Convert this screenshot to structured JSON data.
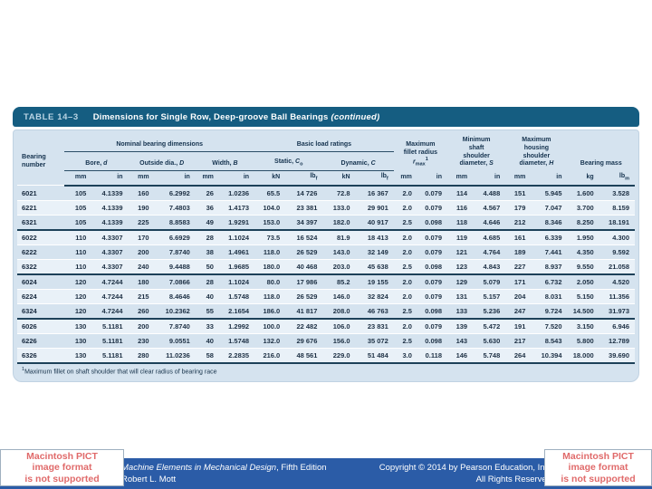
{
  "table": {
    "title_label": "TABLE 14–3",
    "title_text": "Dimensions for Single Row, Deep-groove Ball Bearings",
    "title_suffix": "(continued)",
    "headers": {
      "bearing": "Bearing number",
      "nominal_group": "Nominal bearing dimensions",
      "load_group": "Basic load ratings",
      "bore": {
        "text": "Bore, ",
        "sym": "d"
      },
      "outside": {
        "text": "Outside dia., ",
        "sym": "D"
      },
      "width": {
        "text": "Width, ",
        "sym": "B"
      },
      "static": {
        "text": "Static, ",
        "sym": "C",
        "sub": "o"
      },
      "dynamic": {
        "text": "Dynamic, ",
        "sym": "C"
      },
      "fillet": {
        "lines": "Maximum\nfillet radius",
        "sym": "r",
        "sym_sub": "max",
        "sym_sup": "1"
      },
      "shaft": {
        "lines": "Minimum\nshaft\nshoulder",
        "last": "diameter, ",
        "sym": "S"
      },
      "housing": {
        "lines": "Maximum\nhousing\nshoulder",
        "last": "diameter, ",
        "sym": "H"
      },
      "mass": "Bearing mass"
    },
    "units": [
      {
        "t": "mm"
      },
      {
        "t": "in"
      },
      {
        "t": "mm"
      },
      {
        "t": "in"
      },
      {
        "t": "mm"
      },
      {
        "t": "in"
      },
      {
        "t": "kN"
      },
      {
        "t": "lb",
        "sub": "f"
      },
      {
        "t": "kN"
      },
      {
        "t": "lb",
        "sub": "f"
      },
      {
        "t": "mm"
      },
      {
        "t": "in"
      },
      {
        "t": "mm"
      },
      {
        "t": "in"
      },
      {
        "t": "mm"
      },
      {
        "t": "in"
      },
      {
        "t": "kg"
      },
      {
        "t": "lb",
        "sub": "m"
      }
    ],
    "rows": [
      {
        "bearing": "6021",
        "cells": [
          "105",
          "4.1339",
          "160",
          "6.2992",
          "26",
          "1.0236",
          "65.5",
          "14 726",
          "72.8",
          "16 367",
          "2.0",
          "0.079",
          "114",
          "4.488",
          "151",
          "5.945",
          "1.600",
          "3.528"
        ]
      },
      {
        "bearing": "6221",
        "cells": [
          "105",
          "4.1339",
          "190",
          "7.4803",
          "36",
          "1.4173",
          "104.0",
          "23 381",
          "133.0",
          "29 901",
          "2.0",
          "0.079",
          "116",
          "4.567",
          "179",
          "7.047",
          "3.700",
          "8.159"
        ]
      },
      {
        "bearing": "6321",
        "cells": [
          "105",
          "4.1339",
          "225",
          "8.8583",
          "49",
          "1.9291",
          "153.0",
          "34 397",
          "182.0",
          "40 917",
          "2.5",
          "0.098",
          "118",
          "4.646",
          "212",
          "8.346",
          "8.250",
          "18.191"
        ]
      },
      {
        "bearing": "6022",
        "cells": [
          "110",
          "4.3307",
          "170",
          "6.6929",
          "28",
          "1.1024",
          "73.5",
          "16 524",
          "81.9",
          "18 413",
          "2.0",
          "0.079",
          "119",
          "4.685",
          "161",
          "6.339",
          "1.950",
          "4.300"
        ]
      },
      {
        "bearing": "6222",
        "cells": [
          "110",
          "4.3307",
          "200",
          "7.8740",
          "38",
          "1.4961",
          "118.0",
          "26 529",
          "143.0",
          "32 149",
          "2.0",
          "0.079",
          "121",
          "4.764",
          "189",
          "7.441",
          "4.350",
          "9.592"
        ]
      },
      {
        "bearing": "6322",
        "cells": [
          "110",
          "4.3307",
          "240",
          "9.4488",
          "50",
          "1.9685",
          "180.0",
          "40 468",
          "203.0",
          "45 638",
          "2.5",
          "0.098",
          "123",
          "4.843",
          "227",
          "8.937",
          "9.550",
          "21.058"
        ]
      },
      {
        "bearing": "6024",
        "cells": [
          "120",
          "4.7244",
          "180",
          "7.0866",
          "28",
          "1.1024",
          "80.0",
          "17 986",
          "85.2",
          "19 155",
          "2.0",
          "0.079",
          "129",
          "5.079",
          "171",
          "6.732",
          "2.050",
          "4.520"
        ]
      },
      {
        "bearing": "6224",
        "cells": [
          "120",
          "4.7244",
          "215",
          "8.4646",
          "40",
          "1.5748",
          "118.0",
          "26 529",
          "146.0",
          "32 824",
          "2.0",
          "0.079",
          "131",
          "5.157",
          "204",
          "8.031",
          "5.150",
          "11.356"
        ]
      },
      {
        "bearing": "6324",
        "cells": [
          "120",
          "4.7244",
          "260",
          "10.2362",
          "55",
          "2.1654",
          "186.0",
          "41 817",
          "208.0",
          "46 763",
          "2.5",
          "0.098",
          "133",
          "5.236",
          "247",
          "9.724",
          "14.500",
          "31.973"
        ]
      },
      {
        "bearing": "6026",
        "cells": [
          "130",
          "5.1181",
          "200",
          "7.8740",
          "33",
          "1.2992",
          "100.0",
          "22 482",
          "106.0",
          "23 831",
          "2.0",
          "0.079",
          "139",
          "5.472",
          "191",
          "7.520",
          "3.150",
          "6.946"
        ]
      },
      {
        "bearing": "6226",
        "cells": [
          "130",
          "5.1181",
          "230",
          "9.0551",
          "40",
          "1.5748",
          "132.0",
          "29 676",
          "156.0",
          "35 072",
          "2.5",
          "0.098",
          "143",
          "5.630",
          "217",
          "8.543",
          "5.800",
          "12.789"
        ]
      },
      {
        "bearing": "6326",
        "cells": [
          "130",
          "5.1181",
          "280",
          "11.0236",
          "58",
          "2.2835",
          "216.0",
          "48 561",
          "229.0",
          "51 484",
          "3.0",
          "0.118",
          "146",
          "5.748",
          "264",
          "10.394",
          "18.000",
          "39.690"
        ]
      }
    ],
    "footnote_sup": "1",
    "footnote": "Maximum fillet on shaft shoulder that will clear radius of bearing race"
  },
  "footer": {
    "book_title": "Machine Elements in Mechanical Design",
    "edition": ", Fifth Edition",
    "author": "Robert L. Mott",
    "copyright": "Copyright © 2014 by Pearson Education, Inc.",
    "rights": "All Rights Reserved"
  },
  "pict_placeholder": {
    "line1": "Macintosh PICT",
    "line2": "image format",
    "line3": "is not supported"
  },
  "colors": {
    "table_header_bar": "#155d81",
    "card_background": "#d5e3ef",
    "footer_bar": "#2b5ca7",
    "pict_text": "#e06a6a",
    "rule": "#1d4159"
  }
}
